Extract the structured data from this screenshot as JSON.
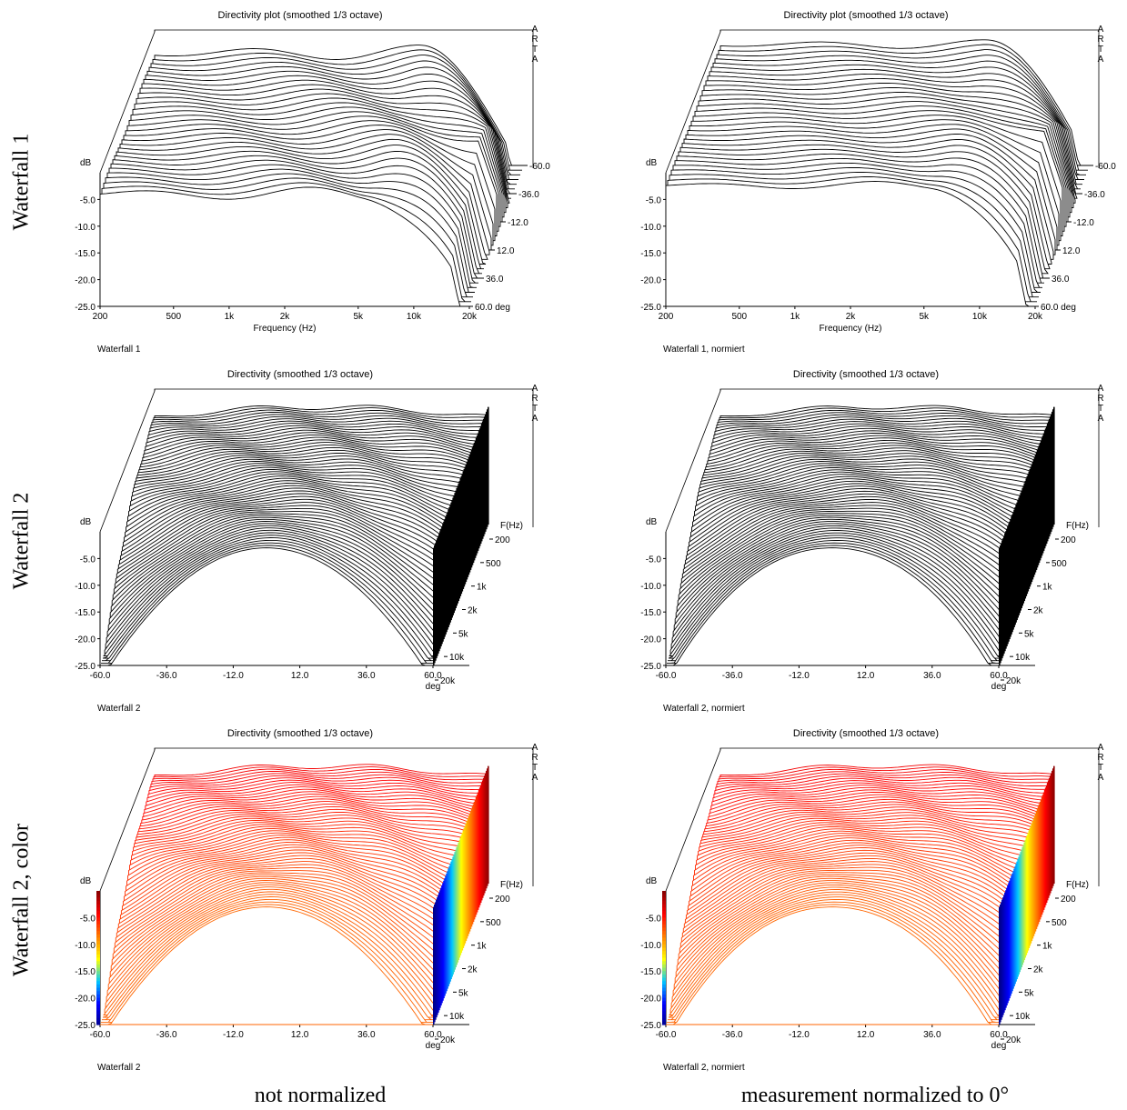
{
  "row_labels": [
    "Waterfall 1",
    "Waterfall 2",
    "Waterfall 2, color"
  ],
  "column_labels": [
    "not normalized",
    "measurement normalized to 0°"
  ],
  "brand": [
    "A",
    "R",
    "T",
    "A"
  ],
  "chart_data": [
    {
      "type": "waterfall",
      "title": "Directivity plot (smoothed 1/3 octave)",
      "caption": "Waterfall 1",
      "ylabel": "dB",
      "xlabel": "Frequency (Hz)",
      "zlabel": "deg",
      "x_ticks": [
        "200",
        "500",
        "1k",
        "2k",
        "5k",
        "10k",
        "20k"
      ],
      "x_scale": "log",
      "xlim": [
        200,
        20000
      ],
      "y_ticks": [
        "-5.0",
        "-10.0",
        "-15.0",
        "-20.0",
        "-25.0"
      ],
      "ylim": [
        -25,
        0
      ],
      "z_ticks": [
        "-60.0",
        "-36.0",
        "-12.0",
        "12.0",
        "36.0",
        "60.0 deg"
      ],
      "zlim": [
        -60,
        60
      ],
      "normalized": false,
      "colormap": false
    },
    {
      "type": "waterfall",
      "title": "Directivity plot (smoothed 1/3 octave)",
      "caption": "Waterfall 1, normiert",
      "ylabel": "dB",
      "xlabel": "Frequency (Hz)",
      "zlabel": "deg",
      "x_ticks": [
        "200",
        "500",
        "1k",
        "2k",
        "5k",
        "10k",
        "20k"
      ],
      "x_scale": "log",
      "xlim": [
        200,
        20000
      ],
      "y_ticks": [
        "-5.0",
        "-10.0",
        "-15.0",
        "-20.0",
        "-25.0"
      ],
      "ylim": [
        -25,
        0
      ],
      "z_ticks": [
        "-60.0",
        "-36.0",
        "-12.0",
        "12.0",
        "36.0",
        "60.0 deg"
      ],
      "zlim": [
        -60,
        60
      ],
      "normalized": true,
      "colormap": false
    },
    {
      "type": "waterfall",
      "title": "Directivity (smoothed 1/3 octave)",
      "caption": "Waterfall 2",
      "ylabel": "dB",
      "xlabel": "deg",
      "zlabel": "F(Hz)",
      "x_ticks": [
        "-60.0",
        "-36.0",
        "-12.0",
        "12.0",
        "36.0",
        "60.0"
      ],
      "xlim": [
        -60,
        60
      ],
      "y_ticks": [
        "-5.0",
        "-10.0",
        "-15.0",
        "-20.0",
        "-25.0"
      ],
      "ylim": [
        -25,
        0
      ],
      "z_ticks": [
        "200",
        "500",
        "1k",
        "2k",
        "5k",
        "10k",
        "20k"
      ],
      "z_scale": "log",
      "normalized": false,
      "colormap": false
    },
    {
      "type": "waterfall",
      "title": "Directivity (smoothed 1/3 octave)",
      "caption": "Waterfall 2, normiert",
      "ylabel": "dB",
      "xlabel": "deg",
      "zlabel": "F(Hz)",
      "x_ticks": [
        "-60.0",
        "-36.0",
        "-12.0",
        "12.0",
        "36.0",
        "60.0"
      ],
      "xlim": [
        -60,
        60
      ],
      "y_ticks": [
        "-5.0",
        "-10.0",
        "-15.0",
        "-20.0",
        "-25.0"
      ],
      "ylim": [
        -25,
        0
      ],
      "z_ticks": [
        "200",
        "500",
        "1k",
        "2k",
        "5k",
        "10k",
        "20k"
      ],
      "z_scale": "log",
      "normalized": true,
      "colormap": false
    },
    {
      "type": "waterfall",
      "title": "Directivity (smoothed 1/3 octave)",
      "caption": "Waterfall 2",
      "ylabel": "dB",
      "xlabel": "deg",
      "zlabel": "F(Hz)",
      "x_ticks": [
        "-60.0",
        "-36.0",
        "-12.0",
        "12.0",
        "36.0",
        "60.0"
      ],
      "xlim": [
        -60,
        60
      ],
      "y_ticks": [
        "-5.0",
        "-10.0",
        "-15.0",
        "-20.0",
        "-25.0"
      ],
      "ylim": [
        -25,
        0
      ],
      "z_ticks": [
        "200",
        "500",
        "1k",
        "2k",
        "5k",
        "10k",
        "20k"
      ],
      "z_scale": "log",
      "normalized": false,
      "colormap": true,
      "colormap_colors": [
        "#00008b",
        "#0000ff",
        "#00c8ff",
        "#ffff00",
        "#ff8000",
        "#ff0000",
        "#8b0000"
      ]
    },
    {
      "type": "waterfall",
      "title": "Directivity (smoothed 1/3 octave)",
      "caption": "Waterfall 2, normiert",
      "ylabel": "dB",
      "xlabel": "deg",
      "zlabel": "F(Hz)",
      "x_ticks": [
        "-60.0",
        "-36.0",
        "-12.0",
        "12.0",
        "36.0",
        "60.0"
      ],
      "xlim": [
        -60,
        60
      ],
      "y_ticks": [
        "-5.0",
        "-10.0",
        "-15.0",
        "-20.0",
        "-25.0"
      ],
      "ylim": [
        -25,
        0
      ],
      "z_ticks": [
        "200",
        "500",
        "1k",
        "2k",
        "5k",
        "10k",
        "20k"
      ],
      "z_scale": "log",
      "normalized": true,
      "colormap": true,
      "colormap_colors": [
        "#00008b",
        "#0000ff",
        "#00c8ff",
        "#ffff00",
        "#ff8000",
        "#ff0000",
        "#8b0000"
      ]
    }
  ]
}
